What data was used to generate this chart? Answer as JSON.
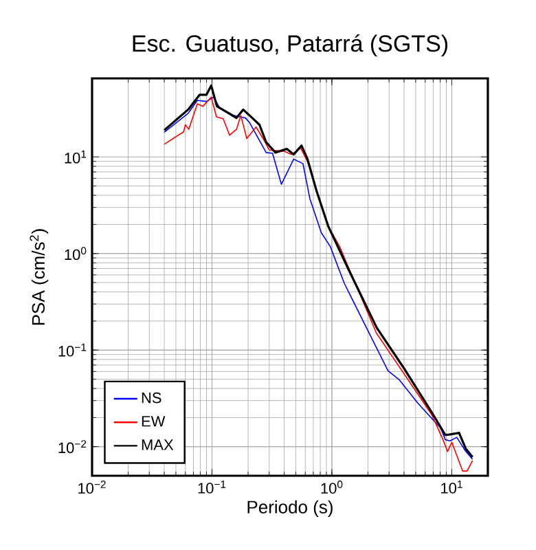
{
  "chart_data": {
    "type": "line",
    "title": "Esc. Guatuso, Patarrá (SGTS)",
    "xlabel": "Periodo (s)",
    "ylabel": "PSA (cm/s$^{2}$)",
    "log": "xy",
    "grid": true,
    "legend": "bottom left",
    "xlim": [
      0.01,
      20
    ],
    "ylim": [
      0.005,
      65
    ],
    "xticks": [
      {
        "value": 0.01,
        "label": "10$^{−2}$"
      },
      {
        "value": 0.1,
        "label": "10$^{−1}$"
      },
      {
        "value": 1,
        "label": "10$^{0}$"
      },
      {
        "value": 10,
        "label": "10$^{1}$"
      }
    ],
    "yticks": [
      {
        "value": 0.01,
        "label": "10$^{−2}$"
      },
      {
        "value": 0.1,
        "label": "10$^{−1}$"
      },
      {
        "value": 1,
        "label": "10$^{0}$"
      },
      {
        "value": 10,
        "label": "10$^{1}$"
      }
    ],
    "series": [
      {
        "name": "NS",
        "color": "#0000ff",
        "x": [
          0.04,
          0.0633,
          0.0755,
          0.09,
          0.103,
          0.117,
          0.153,
          0.19,
          0.205,
          0.283,
          0.32,
          0.379,
          0.48,
          0.574,
          0.655,
          0.816,
          0.97,
          1.27,
          2.06,
          2.94,
          3.66,
          5.2,
          8.1,
          8.84,
          9.66,
          11.0,
          13.1,
          14.9
        ],
        "values": [
          18,
          28.3,
          38.5,
          37.5,
          41.6,
          31.6,
          26.8,
          25.3,
          22.8,
          11.1,
          10.9,
          5.2,
          9.5,
          8.5,
          3.7,
          1.64,
          1.18,
          0.49,
          0.147,
          0.061,
          0.049,
          0.0283,
          0.0155,
          0.0118,
          0.0115,
          0.0125,
          0.0089,
          0.0074
        ]
      },
      {
        "name": "EW",
        "color": "#ff0000",
        "x": [
          0.04,
          0.0508,
          0.058,
          0.06,
          0.064,
          0.0755,
          0.084,
          0.0985,
          0.109,
          0.124,
          0.14,
          0.16,
          0.174,
          0.195,
          0.233,
          0.271,
          0.3,
          0.403,
          0.46,
          0.55,
          0.626,
          0.747,
          0.93,
          1.16,
          2.35,
          6.78,
          8.45,
          9.2,
          10,
          12.3,
          13.4,
          14.9
        ],
        "values": [
          13.5,
          16.4,
          18.2,
          21.5,
          19.3,
          35.4,
          33.4,
          41.6,
          26,
          24.8,
          16.8,
          19.3,
          26.8,
          15.5,
          20.4,
          15,
          11.8,
          11.4,
          10.6,
          12.3,
          8.95,
          4.4,
          1.93,
          1.18,
          0.15,
          0.0216,
          0.0118,
          0.0089,
          0.0111,
          0.0056,
          0.0056,
          0.0072
        ]
      },
      {
        "name": "MAX",
        "color": "#000000",
        "x": [
          0.04,
          0.0486,
          0.0633,
          0.079,
          0.09,
          0.0985,
          0.11,
          0.134,
          0.16,
          0.182,
          0.217,
          0.249,
          0.283,
          0.338,
          0.421,
          0.48,
          0.558,
          0.626,
          0.747,
          0.93,
          1.38,
          2.35,
          4.0,
          6.78,
          8.84,
          9.66,
          11.5,
          13.1,
          14.9
        ],
        "values": [
          18.9,
          23.3,
          30.9,
          44,
          44,
          54.8,
          33.4,
          28.9,
          25.3,
          30.9,
          25.3,
          21.5,
          14.2,
          11.1,
          12.1,
          10.6,
          13.1,
          9.5,
          4.4,
          1.93,
          0.68,
          0.173,
          0.0645,
          0.0228,
          0.0132,
          0.0134,
          0.0139,
          0.0095,
          0.0078
        ]
      }
    ]
  }
}
